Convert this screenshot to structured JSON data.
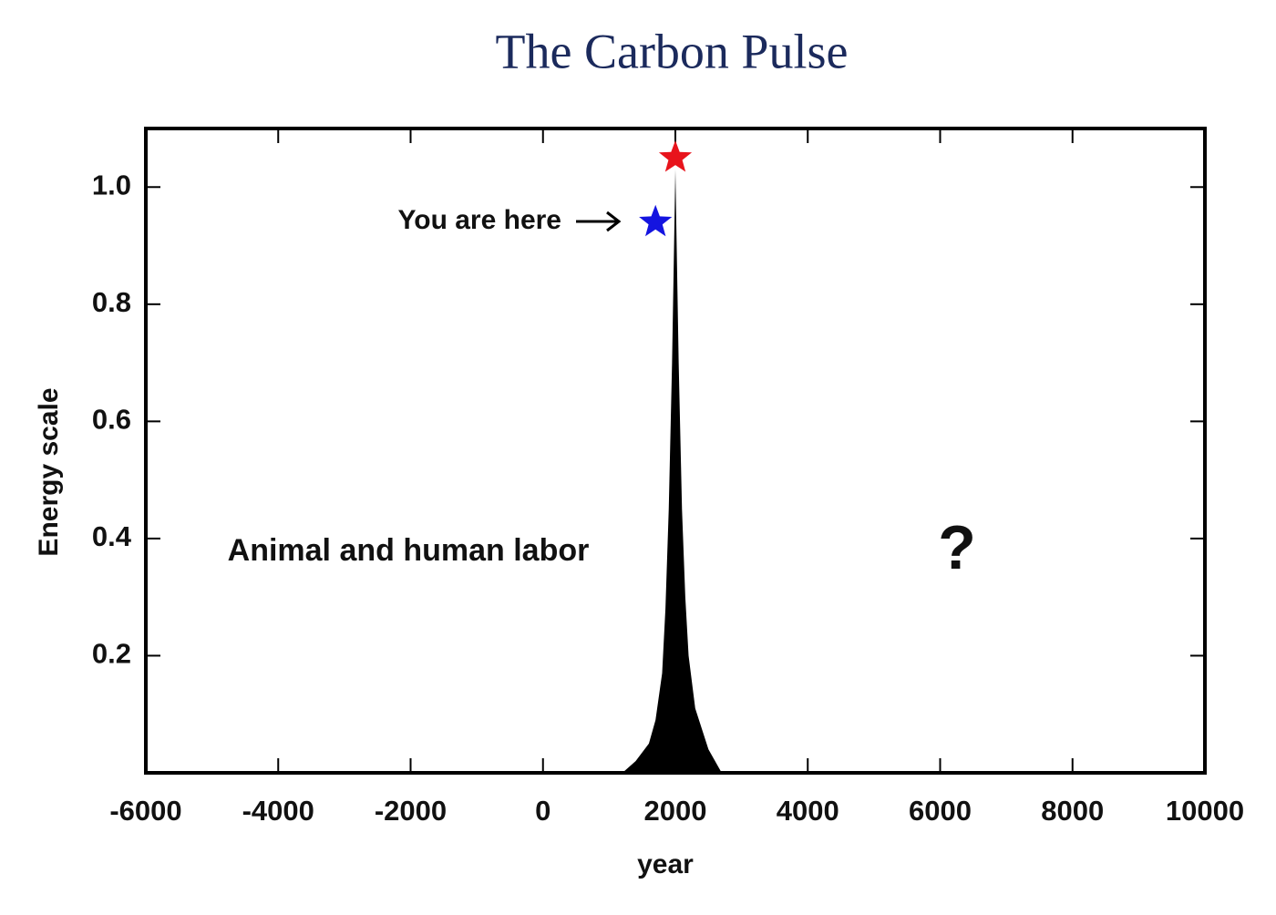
{
  "chart_data": {
    "type": "area",
    "title": "The Carbon Pulse",
    "x_label": "year",
    "y_label": "Energy scale",
    "x": [
      1200,
      1400,
      1600,
      1700,
      1800,
      1850,
      1900,
      1950,
      2000,
      2050,
      2100,
      2150,
      2200,
      2300,
      2500,
      2700
    ],
    "values": [
      0,
      0.02,
      0.05,
      0.09,
      0.17,
      0.28,
      0.45,
      0.7,
      1.03,
      0.7,
      0.45,
      0.3,
      0.2,
      0.11,
      0.04,
      0
    ],
    "color": "#000000",
    "xlim": [
      -6000,
      10000
    ],
    "xticks": [
      -6000,
      -4000,
      -2000,
      0,
      2000,
      4000,
      6000,
      8000,
      10000
    ],
    "ylim": [
      0,
      1.1
    ],
    "yticks": [
      0.2,
      0.4,
      0.6,
      0.8,
      {
        "value": 1,
        "label": "1.0"
      }
    ],
    "markers": [
      {
        "x": 2000,
        "y": 1.05,
        "color": "#e8141c"
      },
      {
        "x": 1700,
        "y": 0.94,
        "color": "#1414e0"
      }
    ],
    "annotations": [
      "You are here",
      "Animal and human labor",
      "?"
    ]
  }
}
